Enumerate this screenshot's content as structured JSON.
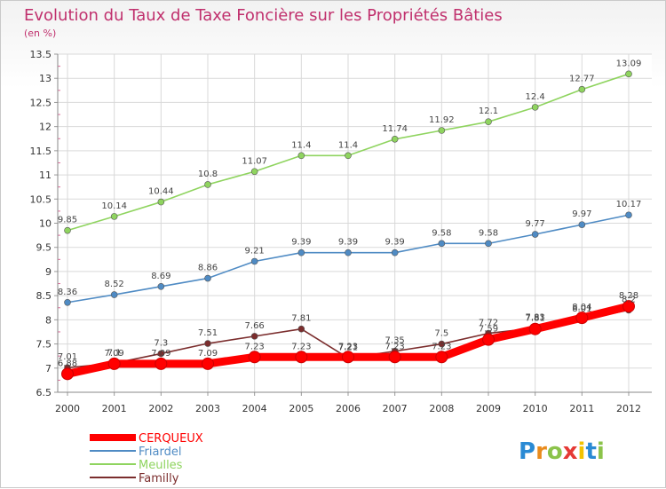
{
  "chart_data": {
    "type": "line",
    "title": "Evolution du Taux de Taxe Foncière sur les Propriétés Bâties",
    "subtitle": "(en %)",
    "categories": [
      "2000",
      "2001",
      "2002",
      "2003",
      "2004",
      "2005",
      "2006",
      "2007",
      "2008",
      "2009",
      "2010",
      "2011",
      "2012"
    ],
    "y_ticks": [
      "6.5",
      "7",
      "7.5",
      "8",
      "8.5",
      "9",
      "9.5",
      "10",
      "10.5",
      "11",
      "11.5",
      "12",
      "12.5",
      "13",
      "13.5"
    ],
    "ylim": [
      6.5,
      13.5
    ],
    "grid": true,
    "legend_position": "bottom-left",
    "series": [
      {
        "name": "CERQUEUX",
        "color": "#ff0000",
        "values": [
          6.88,
          7.09,
          7.09,
          7.09,
          7.23,
          7.23,
          7.23,
          7.23,
          7.23,
          7.59,
          7.81,
          8.04,
          8.28
        ],
        "labels": [
          "6.88",
          "7.09",
          "7.09",
          "7.09",
          "7.23",
          "7.23",
          "7.23",
          "7.23",
          "7.23",
          "7.59",
          "7.81",
          "8.04",
          "8.28"
        ]
      },
      {
        "name": "Friardel",
        "color": "#4f8bc4",
        "values": [
          8.36,
          8.52,
          8.69,
          8.86,
          9.21,
          9.39,
          9.39,
          9.39,
          9.58,
          9.58,
          9.77,
          9.97,
          10.17
        ],
        "labels": [
          "8.36",
          "8.52",
          "8.69",
          "8.86",
          "9.21",
          "9.39",
          "9.39",
          "9.39",
          "9.58",
          "9.58",
          "9.77",
          "9.97",
          "10.17"
        ]
      },
      {
        "name": "Meulles",
        "color": "#8fd45f",
        "values": [
          9.85,
          10.14,
          10.44,
          10.8,
          11.07,
          11.4,
          11.4,
          11.74,
          11.92,
          12.1,
          12.4,
          12.77,
          13.09
        ],
        "labels": [
          "9.85",
          "10.14",
          "10.44",
          "10.8",
          "11.07",
          "11.4",
          "11.4",
          "11.74",
          "11.92",
          "12.1",
          "12.4",
          "12.77",
          "13.09"
        ]
      },
      {
        "name": "Familly",
        "color": "#7b2d2d",
        "values": [
          7.01,
          7.1,
          7.3,
          7.51,
          7.66,
          7.81,
          7.21,
          7.35,
          7.5,
          7.72,
          7.83,
          8.01,
          8.2
        ],
        "labels": [
          "7.01",
          "7.1",
          "7.3",
          "7.51",
          "7.66",
          "7.81",
          "7.21",
          "7.35",
          "7.5",
          "7.72",
          "7.83",
          "8.01",
          "8.2"
        ]
      }
    ],
    "brand": {
      "text": "Proxiti",
      "letters": [
        "P",
        "r",
        "o",
        "x",
        "i",
        "t",
        "i"
      ],
      "colors": [
        "#2a8ad4",
        "#e98b1d",
        "#8bc34a",
        "#e53935",
        "#f2c200",
        "#2a8ad4",
        "#8bc34a"
      ]
    }
  }
}
